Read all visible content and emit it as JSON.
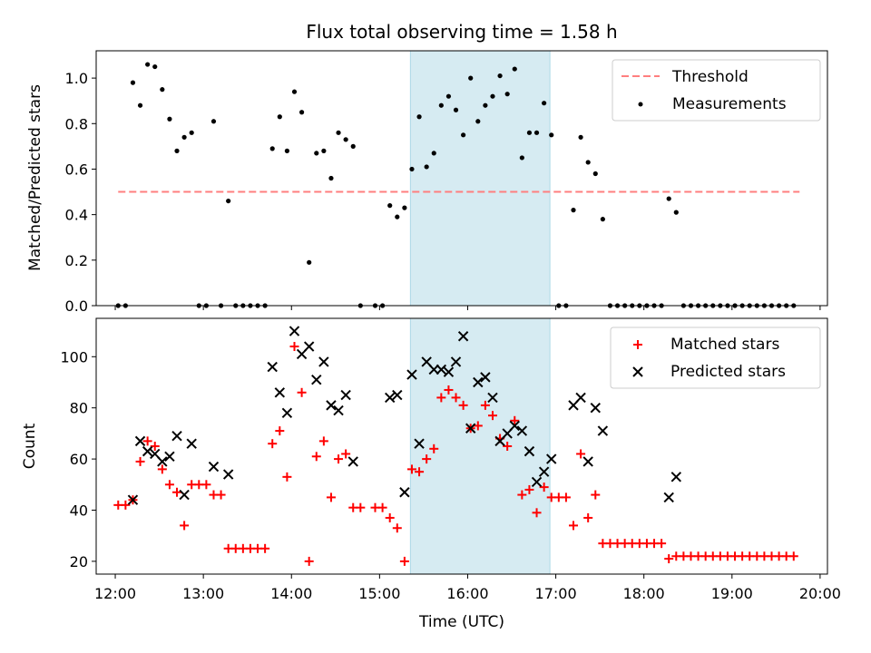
{
  "title": "Flux total observing time = 1.58 h",
  "colors": {
    "threshold": "#ff7f7f",
    "measurement": "#000000",
    "matched": "#ff0000",
    "predicted": "#000000",
    "span": "#add8e6"
  },
  "chart_data": [
    {
      "type": "scatter",
      "name": "ratio-panel",
      "title": "Flux total observing time = 1.58 h",
      "xlabel": "",
      "ylabel": "Matched/Predicted stars",
      "xlim": [
        "11:47",
        "20:05"
      ],
      "ylim": [
        0,
        1.12
      ],
      "yticks": [
        "0.0",
        "0.2",
        "0.4",
        "0.6",
        "0.8",
        "1.0"
      ],
      "highlight_span": [
        "15:21",
        "16:56"
      ],
      "legend": [
        "Threshold",
        "Measurements"
      ],
      "legend_position": "upper right",
      "threshold": {
        "name": "Threshold",
        "y": 0.5,
        "x_range": [
          "12:02",
          "19:46"
        ]
      },
      "series": [
        {
          "name": "Measurements",
          "points": [
            [
              "12:02",
              0
            ],
            [
              "12:07",
              0
            ],
            [
              "12:12",
              0.98
            ],
            [
              "12:17",
              0.88
            ],
            [
              "12:22",
              1.06
            ],
            [
              "12:27",
              1.05
            ],
            [
              "12:32",
              0.95
            ],
            [
              "12:37",
              0.82
            ],
            [
              "12:42",
              0.68
            ],
            [
              "12:47",
              0.74
            ],
            [
              "12:52",
              0.76
            ],
            [
              "12:57",
              0
            ],
            [
              "13:02",
              0
            ],
            [
              "13:07",
              0.81
            ],
            [
              "13:12",
              0
            ],
            [
              "13:17",
              0.46
            ],
            [
              "13:22",
              0
            ],
            [
              "13:27",
              0
            ],
            [
              "13:32",
              0
            ],
            [
              "13:37",
              0
            ],
            [
              "13:42",
              0
            ],
            [
              "13:47",
              0.69
            ],
            [
              "13:52",
              0.83
            ],
            [
              "13:57",
              0.68
            ],
            [
              "14:02",
              0.94
            ],
            [
              "14:07",
              0.85
            ],
            [
              "14:12",
              0.19
            ],
            [
              "14:17",
              0.67
            ],
            [
              "14:22",
              0.68
            ],
            [
              "14:27",
              0.56
            ],
            [
              "14:32",
              0.76
            ],
            [
              "14:37",
              0.73
            ],
            [
              "14:42",
              0.7
            ],
            [
              "14:47",
              0
            ],
            [
              "14:57",
              0
            ],
            [
              "15:02",
              0
            ],
            [
              "15:07",
              0.44
            ],
            [
              "15:12",
              0.39
            ],
            [
              "15:17",
              0.43
            ],
            [
              "15:22",
              0.6
            ],
            [
              "15:27",
              0.83
            ],
            [
              "15:32",
              0.61
            ],
            [
              "15:37",
              0.67
            ],
            [
              "15:42",
              0.88
            ],
            [
              "15:47",
              0.92
            ],
            [
              "15:52",
              0.86
            ],
            [
              "15:57",
              0.75
            ],
            [
              "16:02",
              1.0
            ],
            [
              "16:07",
              0.81
            ],
            [
              "16:12",
              0.88
            ],
            [
              "16:17",
              0.92
            ],
            [
              "16:22",
              1.01
            ],
            [
              "16:27",
              0.93
            ],
            [
              "16:32",
              1.04
            ],
            [
              "16:37",
              0.65
            ],
            [
              "16:42",
              0.76
            ],
            [
              "16:47",
              0.76
            ],
            [
              "16:52",
              0.89
            ],
            [
              "16:57",
              0.75
            ],
            [
              "17:02",
              0
            ],
            [
              "17:07",
              0
            ],
            [
              "17:12",
              0.42
            ],
            [
              "17:17",
              0.74
            ],
            [
              "17:22",
              0.63
            ],
            [
              "17:27",
              0.58
            ],
            [
              "17:32",
              0.38
            ],
            [
              "17:37",
              0
            ],
            [
              "17:42",
              0
            ],
            [
              "17:47",
              0
            ],
            [
              "17:52",
              0
            ],
            [
              "17:57",
              0
            ],
            [
              "18:02",
              0
            ],
            [
              "18:07",
              0
            ],
            [
              "18:12",
              0
            ],
            [
              "18:17",
              0.47
            ],
            [
              "18:22",
              0.41
            ],
            [
              "18:27",
              0
            ],
            [
              "18:32",
              0
            ],
            [
              "18:37",
              0
            ],
            [
              "18:42",
              0
            ],
            [
              "18:47",
              0
            ],
            [
              "18:52",
              0
            ],
            [
              "18:57",
              0
            ],
            [
              "19:02",
              0
            ],
            [
              "19:07",
              0
            ],
            [
              "19:12",
              0
            ],
            [
              "19:17",
              0
            ],
            [
              "19:22",
              0
            ],
            [
              "19:27",
              0
            ],
            [
              "19:32",
              0
            ],
            [
              "19:37",
              0
            ],
            [
              "19:42",
              0
            ]
          ]
        }
      ]
    },
    {
      "type": "scatter",
      "name": "count-panel",
      "xlabel": "Time (UTC)",
      "ylabel": "Count",
      "xlim": [
        "11:47",
        "20:05"
      ],
      "ylim": [
        15,
        115
      ],
      "yticks": [
        "20",
        "40",
        "60",
        "80",
        "100"
      ],
      "xticks": [
        "12:00",
        "13:00",
        "14:00",
        "15:00",
        "16:00",
        "17:00",
        "18:00",
        "19:00",
        "20:00"
      ],
      "highlight_span": [
        "15:21",
        "16:56"
      ],
      "legend": [
        "Matched stars",
        "Predicted stars"
      ],
      "legend_position": "upper right",
      "series": [
        {
          "name": "Matched stars",
          "points": [
            [
              "12:02",
              42
            ],
            [
              "12:07",
              42
            ],
            [
              "12:12",
              44
            ],
            [
              "12:17",
              59
            ],
            [
              "12:22",
              67
            ],
            [
              "12:27",
              65
            ],
            [
              "12:32",
              56
            ],
            [
              "12:37",
              50
            ],
            [
              "12:42",
              47
            ],
            [
              "12:47",
              34
            ],
            [
              "12:52",
              50
            ],
            [
              "12:57",
              50
            ],
            [
              "13:02",
              50
            ],
            [
              "13:07",
              46
            ],
            [
              "13:12",
              46
            ],
            [
              "13:17",
              25
            ],
            [
              "13:22",
              25
            ],
            [
              "13:27",
              25
            ],
            [
              "13:32",
              25
            ],
            [
              "13:37",
              25
            ],
            [
              "13:42",
              25
            ],
            [
              "13:47",
              66
            ],
            [
              "13:52",
              71
            ],
            [
              "13:57",
              53
            ],
            [
              "14:02",
              104
            ],
            [
              "14:07",
              86
            ],
            [
              "14:12",
              20
            ],
            [
              "14:17",
              61
            ],
            [
              "14:22",
              67
            ],
            [
              "14:27",
              45
            ],
            [
              "14:32",
              60
            ],
            [
              "14:37",
              62
            ],
            [
              "14:42",
              41
            ],
            [
              "14:47",
              41
            ],
            [
              "14:57",
              41
            ],
            [
              "15:02",
              41
            ],
            [
              "15:07",
              37
            ],
            [
              "15:12",
              33
            ],
            [
              "15:17",
              20
            ],
            [
              "15:22",
              56
            ],
            [
              "15:27",
              55
            ],
            [
              "15:32",
              60
            ],
            [
              "15:37",
              64
            ],
            [
              "15:42",
              84
            ],
            [
              "15:47",
              87
            ],
            [
              "15:52",
              84
            ],
            [
              "15:57",
              81
            ],
            [
              "16:02",
              72
            ],
            [
              "16:07",
              73
            ],
            [
              "16:12",
              81
            ],
            [
              "16:17",
              77
            ],
            [
              "16:22",
              68
            ],
            [
              "16:27",
              65
            ],
            [
              "16:32",
              75
            ],
            [
              "16:37",
              46
            ],
            [
              "16:42",
              48
            ],
            [
              "16:47",
              39
            ],
            [
              "16:52",
              49
            ],
            [
              "16:57",
              45
            ],
            [
              "17:02",
              45
            ],
            [
              "17:07",
              45
            ],
            [
              "17:12",
              34
            ],
            [
              "17:17",
              62
            ],
            [
              "17:22",
              37
            ],
            [
              "17:27",
              46
            ],
            [
              "17:32",
              27
            ],
            [
              "17:37",
              27
            ],
            [
              "17:42",
              27
            ],
            [
              "17:47",
              27
            ],
            [
              "17:52",
              27
            ],
            [
              "17:57",
              27
            ],
            [
              "18:02",
              27
            ],
            [
              "18:07",
              27
            ],
            [
              "18:12",
              27
            ],
            [
              "18:17",
              21
            ],
            [
              "18:22",
              22
            ],
            [
              "18:27",
              22
            ],
            [
              "18:32",
              22
            ],
            [
              "18:37",
              22
            ],
            [
              "18:42",
              22
            ],
            [
              "18:47",
              22
            ],
            [
              "18:52",
              22
            ],
            [
              "18:57",
              22
            ],
            [
              "19:02",
              22
            ],
            [
              "19:07",
              22
            ],
            [
              "19:12",
              22
            ],
            [
              "19:17",
              22
            ],
            [
              "19:22",
              22
            ],
            [
              "19:27",
              22
            ],
            [
              "19:32",
              22
            ],
            [
              "19:37",
              22
            ],
            [
              "19:42",
              22
            ]
          ]
        },
        {
          "name": "Predicted stars",
          "points": [
            [
              "12:12",
              44
            ],
            [
              "12:17",
              67
            ],
            [
              "12:22",
              63
            ],
            [
              "12:27",
              62
            ],
            [
              "12:32",
              59
            ],
            [
              "12:37",
              61
            ],
            [
              "12:42",
              69
            ],
            [
              "12:47",
              46
            ],
            [
              "12:52",
              66
            ],
            [
              "13:07",
              57
            ],
            [
              "13:17",
              54
            ],
            [
              "13:47",
              96
            ],
            [
              "13:52",
              86
            ],
            [
              "13:57",
              78
            ],
            [
              "14:02",
              110
            ],
            [
              "14:07",
              101
            ],
            [
              "14:12",
              104
            ],
            [
              "14:17",
              91
            ],
            [
              "14:22",
              98
            ],
            [
              "14:27",
              81
            ],
            [
              "14:32",
              79
            ],
            [
              "14:37",
              85
            ],
            [
              "14:42",
              59
            ],
            [
              "15:07",
              84
            ],
            [
              "15:12",
              85
            ],
            [
              "15:17",
              47
            ],
            [
              "15:22",
              93
            ],
            [
              "15:27",
              66
            ],
            [
              "15:32",
              98
            ],
            [
              "15:37",
              95
            ],
            [
              "15:42",
              95
            ],
            [
              "15:47",
              94
            ],
            [
              "15:52",
              98
            ],
            [
              "15:57",
              108
            ],
            [
              "16:02",
              72
            ],
            [
              "16:07",
              90
            ],
            [
              "16:12",
              92
            ],
            [
              "16:17",
              84
            ],
            [
              "16:22",
              67
            ],
            [
              "16:27",
              70
            ],
            [
              "16:32",
              73
            ],
            [
              "16:37",
              71
            ],
            [
              "16:42",
              63
            ],
            [
              "16:47",
              51
            ],
            [
              "16:52",
              55
            ],
            [
              "16:57",
              60
            ],
            [
              "17:12",
              81
            ],
            [
              "17:17",
              84
            ],
            [
              "17:22",
              59
            ],
            [
              "17:27",
              80
            ],
            [
              "17:32",
              71
            ],
            [
              "18:17",
              45
            ],
            [
              "18:22",
              53
            ]
          ]
        }
      ]
    }
  ]
}
